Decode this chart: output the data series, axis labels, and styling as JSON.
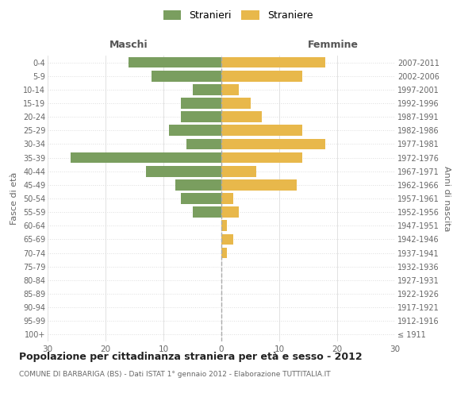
{
  "age_groups": [
    "100+",
    "95-99",
    "90-94",
    "85-89",
    "80-84",
    "75-79",
    "70-74",
    "65-69",
    "60-64",
    "55-59",
    "50-54",
    "45-49",
    "40-44",
    "35-39",
    "30-34",
    "25-29",
    "20-24",
    "15-19",
    "10-14",
    "5-9",
    "0-4"
  ],
  "birth_years": [
    "≤ 1911",
    "1912-1916",
    "1917-1921",
    "1922-1926",
    "1927-1931",
    "1932-1936",
    "1937-1941",
    "1942-1946",
    "1947-1951",
    "1952-1956",
    "1957-1961",
    "1962-1966",
    "1967-1971",
    "1972-1976",
    "1977-1981",
    "1982-1986",
    "1987-1991",
    "1992-1996",
    "1997-2001",
    "2002-2006",
    "2007-2011"
  ],
  "maschi": [
    0,
    0,
    0,
    0,
    0,
    0,
    0,
    0,
    0,
    5,
    7,
    8,
    13,
    26,
    6,
    9,
    7,
    7,
    5,
    12,
    16
  ],
  "femmine": [
    0,
    0,
    0,
    0,
    0,
    0,
    1,
    2,
    1,
    3,
    2,
    13,
    6,
    14,
    18,
    14,
    7,
    5,
    3,
    14,
    18
  ],
  "color_maschi": "#7a9e5f",
  "color_femmine": "#e8b84b",
  "title": "Popolazione per cittadinanza straniera per età e sesso - 2012",
  "subtitle": "COMUNE DI BARBARIGA (BS) - Dati ISTAT 1° gennaio 2012 - Elaborazione TUTTITALIA.IT",
  "header_left": "Maschi",
  "header_right": "Femmine",
  "ylabel_left": "Fasce di età",
  "ylabel_right": "Anni di nascita",
  "legend_maschi": "Stranieri",
  "legend_femmine": "Straniere",
  "xlim": 30,
  "bar_height": 0.8,
  "background_color": "#ffffff",
  "grid_color": "#dddddd",
  "center_line_color": "#aaaaaa",
  "tick_color": "#666666",
  "header_color": "#555555",
  "title_color": "#222222",
  "subtitle_color": "#666666"
}
